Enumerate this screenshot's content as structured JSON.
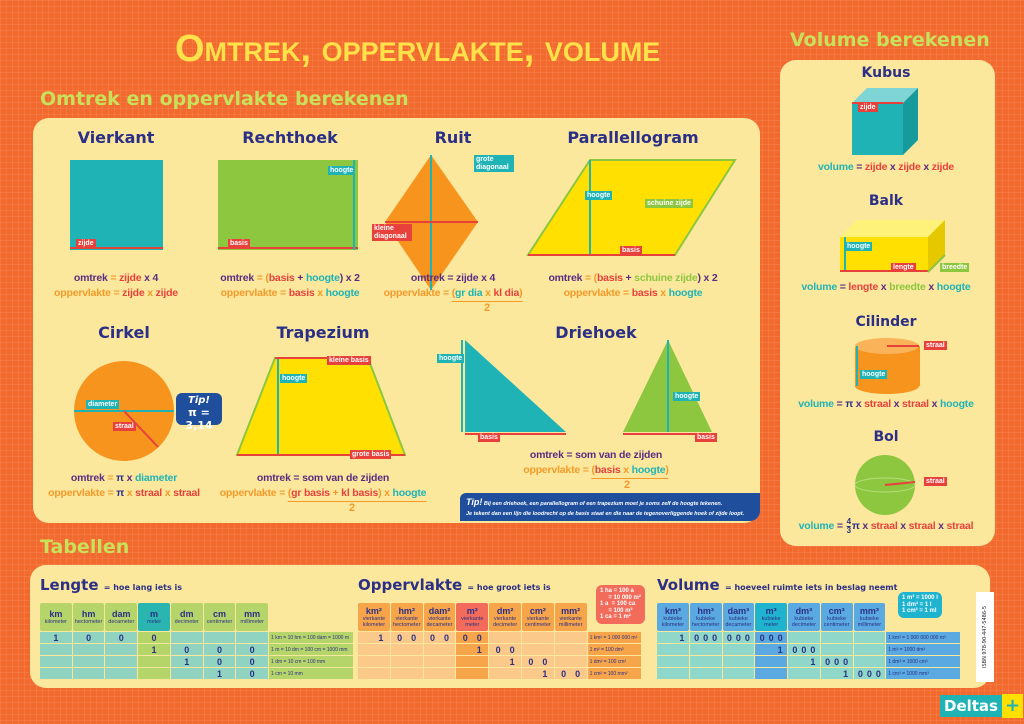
{
  "title": "Omtrek, oppervlakte, volume",
  "section_area": "Omtrek en oppervlakte berekenen",
  "section_volume": "Volume berekenen",
  "section_tables": "Tabellen",
  "colors": {
    "background": "#f26a2e",
    "panel": "#fbe89d",
    "title": "#ffe14a",
    "heading": "#c8e05a",
    "navy": "#2b2f86",
    "purple": "#5a2d82",
    "orange": "#f39a2a",
    "red": "#e8413c",
    "teal": "#1fb3b5",
    "green": "#8dc63f",
    "yellow": "#ffe000"
  },
  "shapes": {
    "vierkant": {
      "title": "Vierkant",
      "labels": [
        "zijde"
      ],
      "omtrek": [
        {
          "t": "omtrek",
          "c": "o"
        },
        {
          "t": " = ",
          "c": "p"
        },
        {
          "t": "zijde",
          "c": "z"
        },
        {
          "t": " x 4",
          "c": "o"
        }
      ],
      "opp": [
        {
          "t": "oppervlakte",
          "c": "p"
        },
        {
          "t": " = ",
          "c": "p"
        },
        {
          "t": "zijde",
          "c": "z"
        },
        {
          "t": " x ",
          "c": "p"
        },
        {
          "t": "zijde",
          "c": "z"
        }
      ]
    },
    "rechthoek": {
      "title": "Rechthoek",
      "labels": [
        "hoogte",
        "basis"
      ],
      "omtrek": [
        {
          "t": "omtrek",
          "c": "o"
        },
        {
          "t": " = (",
          "c": "p"
        },
        {
          "t": "basis",
          "c": "z"
        },
        {
          "t": " + ",
          "c": "o"
        },
        {
          "t": "hoogte",
          "c": "h"
        },
        {
          "t": ") x 2",
          "c": "o"
        }
      ],
      "opp": [
        {
          "t": "oppervlakte",
          "c": "p"
        },
        {
          "t": " = ",
          "c": "p"
        },
        {
          "t": "basis",
          "c": "z"
        },
        {
          "t": " x ",
          "c": "p"
        },
        {
          "t": "hoogte",
          "c": "h"
        }
      ]
    },
    "ruit": {
      "title": "Ruit",
      "labels": [
        "grote diagonaal",
        "kleine diagonaal"
      ],
      "omtrek": [
        {
          "t": "omtrek",
          "c": "o"
        },
        {
          "t": " = zijde x 4",
          "c": "o"
        }
      ],
      "opp": [
        {
          "t": "oppervlakte",
          "c": "p"
        },
        {
          "t": " = ",
          "c": "p"
        }
      ],
      "num": [
        {
          "t": "(",
          "c": "p"
        },
        {
          "t": "gr dia",
          "c": "h"
        },
        {
          "t": " x ",
          "c": "p"
        },
        {
          "t": "kl dia",
          "c": "z"
        },
        {
          "t": ")",
          "c": "p"
        }
      ],
      "den": "2"
    },
    "parallellogram": {
      "title": "Parallellogram",
      "labels": [
        "hoogte",
        "schuine zijde",
        "basis"
      ],
      "omtrek": [
        {
          "t": "omtrek",
          "c": "o"
        },
        {
          "t": " = (",
          "c": "p"
        },
        {
          "t": "basis",
          "c": "z"
        },
        {
          "t": " + ",
          "c": "o"
        },
        {
          "t": "schuine zijde",
          "c": "g"
        },
        {
          "t": ") x 2",
          "c": "o"
        }
      ],
      "opp": [
        {
          "t": "oppervlakte",
          "c": "p"
        },
        {
          "t": " = ",
          "c": "p"
        },
        {
          "t": "basis",
          "c": "z"
        },
        {
          "t": " x ",
          "c": "p"
        },
        {
          "t": "hoogte",
          "c": "h"
        }
      ]
    },
    "cirkel": {
      "title": "Cirkel",
      "labels": [
        "diameter",
        "straal"
      ],
      "tip_title": "Tip!",
      "tip_text": "π = 3,14",
      "omtrek": [
        {
          "t": "omtrek",
          "c": "o"
        },
        {
          "t": " = ",
          "c": "p"
        },
        {
          "t": "π",
          "c": "k"
        },
        {
          "t": " x ",
          "c": "o"
        },
        {
          "t": "diameter",
          "c": "h"
        }
      ],
      "opp": [
        {
          "t": "oppervlakte",
          "c": "p"
        },
        {
          "t": " = ",
          "c": "p"
        },
        {
          "t": "π",
          "c": "k"
        },
        {
          "t": " x ",
          "c": "p"
        },
        {
          "t": "straal",
          "c": "z"
        },
        {
          "t": " x ",
          "c": "p"
        },
        {
          "t": "straal",
          "c": "z"
        }
      ]
    },
    "trapezium": {
      "title": "Trapezium",
      "labels": [
        "kleine basis",
        "hoogte",
        "grote basis"
      ],
      "omtrek": [
        {
          "t": "omtrek",
          "c": "o"
        },
        {
          "t": " = som van de zijden",
          "c": "o"
        }
      ],
      "opp": [
        {
          "t": "oppervlakte",
          "c": "p"
        },
        {
          "t": " = ",
          "c": "p"
        }
      ],
      "num": [
        {
          "t": "(",
          "c": "p"
        },
        {
          "t": "gr basis",
          "c": "z"
        },
        {
          "t": " + ",
          "c": "p"
        },
        {
          "t": "kl basis",
          "c": "z"
        },
        {
          "t": ")",
          "c": "p"
        },
        {
          "t": " x ",
          "c": "p"
        },
        {
          "t": "hoogte",
          "c": "h"
        }
      ],
      "den": "2"
    },
    "driehoek": {
      "title": "Driehoek",
      "labels": [
        "hoogte",
        "basis",
        "hoogte",
        "basis"
      ],
      "omtrek": [
        {
          "t": "omtrek",
          "c": "o"
        },
        {
          "t": " = som van de zijden",
          "c": "o"
        }
      ],
      "opp": [
        {
          "t": "oppervlakte",
          "c": "p"
        },
        {
          "t": " = ",
          "c": "p"
        }
      ],
      "num": [
        {
          "t": "(",
          "c": "p"
        },
        {
          "t": "basis",
          "c": "z"
        },
        {
          "t": " x ",
          "c": "p"
        },
        {
          "t": "hoogte",
          "c": "h"
        },
        {
          "t": ")",
          "c": "p"
        }
      ],
      "den": "2"
    }
  },
  "tip": {
    "title": "Tip!",
    "line1": "Bij een driehoek, een parallellogram of een trapezium moet je soms zelf de hoogte tekenen.",
    "line2": "Je tekent dan een lijn die loodrecht op de basis staat en die naar de tegenoverliggende hoek of zijde loopt."
  },
  "volumes": {
    "kubus": {
      "title": "Kubus",
      "labels": [
        "zijde"
      ],
      "f": [
        {
          "t": "volume",
          "c": "h"
        },
        {
          "t": " = ",
          "c": "o"
        },
        {
          "t": "zijde",
          "c": "z"
        },
        {
          "t": " x ",
          "c": "o"
        },
        {
          "t": "zijde",
          "c": "z"
        },
        {
          "t": " x ",
          "c": "o"
        },
        {
          "t": "zijde",
          "c": "z"
        }
      ]
    },
    "balk": {
      "title": "Balk",
      "labels": [
        "hoogte",
        "lengte",
        "breedte"
      ],
      "f": [
        {
          "t": "volume",
          "c": "h"
        },
        {
          "t": " = ",
          "c": "o"
        },
        {
          "t": "lengte",
          "c": "z"
        },
        {
          "t": " x ",
          "c": "o"
        },
        {
          "t": "breedte",
          "c": "g"
        },
        {
          "t": " x ",
          "c": "o"
        },
        {
          "t": "hoogte",
          "c": "h"
        }
      ]
    },
    "cilinder": {
      "title": "Cilinder",
      "labels": [
        "straal",
        "hoogte"
      ],
      "f": [
        {
          "t": "volume",
          "c": "h"
        },
        {
          "t": " = ",
          "c": "o"
        },
        {
          "t": "π",
          "c": "k"
        },
        {
          "t": " x ",
          "c": "o"
        },
        {
          "t": "straal",
          "c": "z"
        },
        {
          "t": " x ",
          "c": "o"
        },
        {
          "t": "straal",
          "c": "z"
        },
        {
          "t": " x ",
          "c": "o"
        },
        {
          "t": "hoogte",
          "c": "h"
        }
      ]
    },
    "bol": {
      "title": "Bol",
      "labels": [
        "straal"
      ],
      "frac_num": "4",
      "frac_den": "3",
      "f": [
        {
          "t": "π",
          "c": "k"
        },
        {
          "t": " x ",
          "c": "o"
        },
        {
          "t": "straal",
          "c": "z"
        },
        {
          "t": " x ",
          "c": "o"
        },
        {
          "t": "straal",
          "c": "z"
        },
        {
          "t": " x ",
          "c": "o"
        },
        {
          "t": "straal",
          "c": "z"
        }
      ],
      "prefix": [
        {
          "t": "volume",
          "c": "h"
        },
        {
          "t": " = ",
          "c": "o"
        }
      ]
    }
  },
  "tables": [
    {
      "title": "Lengte",
      "subtitle": "= hoe lang iets is",
      "sub": 1,
      "head": "#b5d56a",
      "hl": "#2bb5b0",
      "row": "#8fd3c0",
      "rowhl": "#b5d56a",
      "note": "#b5d56a",
      "columns": [
        {
          "u": "km",
          "n": "kilometer"
        },
        {
          "u": "hm",
          "n": "hectometer"
        },
        {
          "u": "dam",
          "n": "decameter"
        },
        {
          "u": "m",
          "n": "meter"
        },
        {
          "u": "dm",
          "n": "decimeter"
        },
        {
          "u": "cm",
          "n": "centimeter"
        },
        {
          "u": "mm",
          "n": "millimeter"
        }
      ],
      "rows": [
        [
          [
            "1"
          ],
          [
            "0"
          ],
          [
            "0"
          ],
          [
            "0"
          ],
          [
            ""
          ],
          [
            ""
          ],
          [
            ""
          ]
        ],
        [
          [
            ""
          ],
          [
            ""
          ],
          [
            ""
          ],
          [
            "1"
          ],
          [
            "0"
          ],
          [
            "0"
          ],
          [
            "0"
          ]
        ],
        [
          [
            ""
          ],
          [
            ""
          ],
          [
            ""
          ],
          [
            ""
          ],
          [
            "1"
          ],
          [
            "0"
          ],
          [
            "0"
          ]
        ],
        [
          [
            ""
          ],
          [
            ""
          ],
          [
            ""
          ],
          [
            ""
          ],
          [
            ""
          ],
          [
            "1"
          ],
          [
            "0"
          ]
        ]
      ],
      "notes": [
        "1 km = 10 hm = 100 dam = 1000 m",
        "1 m = 10 dm = 100 cm = 1000 mm",
        "1 dm = 10 cm = 100 mm",
        "1 cm = 10 mm"
      ]
    },
    {
      "title": "Oppervlakte",
      "subtitle": "= hoe groot iets is",
      "sub": 2,
      "head": "#f7a54a",
      "hl": "#f26b5b",
      "row": "#fbc98a",
      "rowhl": "#f7a54a",
      "note": "#f7a54a",
      "box": "1 ha = 100 a\n     = 10 000 m²\n1 a  = 100 ca\n     = 100 m²\n1 ca = 1 m²",
      "boxcolor": "#f26b5b",
      "columns": [
        {
          "u": "km²",
          "n": "vierkante kilometer"
        },
        {
          "u": "hm²",
          "n": "vierkante hectometer"
        },
        {
          "u": "dam²",
          "n": "vierkante decameter"
        },
        {
          "u": "m²",
          "n": "vierkante meter"
        },
        {
          "u": "dm²",
          "n": "vierkante decimeter"
        },
        {
          "u": "cm²",
          "n": "vierkante centimeter"
        },
        {
          "u": "mm²",
          "n": "vierkante millimeter"
        }
      ],
      "rows": [
        [
          [
            "",
            "1"
          ],
          [
            "0",
            "0"
          ],
          [
            "0",
            "0"
          ],
          [
            "0",
            "0"
          ],
          [
            "",
            ""
          ],
          [
            "",
            ""
          ],
          [
            "",
            ""
          ]
        ],
        [
          [
            "",
            ""
          ],
          [
            "",
            ""
          ],
          [
            "",
            ""
          ],
          [
            "",
            "1"
          ],
          [
            "0",
            "0"
          ],
          [
            "",
            ""
          ],
          [
            "",
            ""
          ]
        ],
        [
          [
            "",
            ""
          ],
          [
            "",
            ""
          ],
          [
            "",
            ""
          ],
          [
            "",
            ""
          ],
          [
            "",
            "1"
          ],
          [
            "0",
            "0"
          ],
          [
            "",
            ""
          ]
        ],
        [
          [
            "",
            ""
          ],
          [
            "",
            ""
          ],
          [
            "",
            ""
          ],
          [
            "",
            ""
          ],
          [
            "",
            ""
          ],
          [
            "",
            "1"
          ],
          [
            "0",
            "0"
          ]
        ]
      ],
      "notes": [
        "1 km² = 1 000 000 m²",
        "1 m² = 100 dm²",
        "1 dm² = 100 cm²",
        "1 cm² = 100 mm²"
      ]
    },
    {
      "title": "Volume",
      "subtitle": "= hoeveel ruimte iets in beslag neemt",
      "sub": 3,
      "head": "#5aa9e0",
      "hl": "#1fb3d0",
      "row": "#8fd7c9",
      "rowhl": "#5aa9e0",
      "note": "#5aa9e0",
      "box": "1 m³ = 1000 l\n1 dm³ = 1 l\n1 cm³ = 1 ml",
      "boxcolor": "#1fb3d0",
      "columns": [
        {
          "u": "km³",
          "n": "kubieke kilometer"
        },
        {
          "u": "hm³",
          "n": "kubieke hectometer"
        },
        {
          "u": "dam³",
          "n": "kubieke decameter"
        },
        {
          "u": "m³",
          "n": "kubieke meter"
        },
        {
          "u": "dm³",
          "n": "kubieke decimeter"
        },
        {
          "u": "cm³",
          "n": "kubieke centimeter"
        },
        {
          "u": "mm³",
          "n": "kubieke millimeter"
        }
      ],
      "rows": [
        [
          [
            "",
            "",
            "1"
          ],
          [
            "0",
            "0",
            "0"
          ],
          [
            "0",
            "0",
            "0"
          ],
          [
            "0",
            "0",
            "0"
          ],
          [
            "",
            "",
            ""
          ],
          [
            "",
            "",
            ""
          ],
          [
            "",
            "",
            ""
          ]
        ],
        [
          [
            "",
            "",
            ""
          ],
          [
            "",
            "",
            ""
          ],
          [
            "",
            "",
            ""
          ],
          [
            "",
            "",
            "1"
          ],
          [
            "0",
            "0",
            "0"
          ],
          [
            "",
            "",
            ""
          ],
          [
            "",
            "",
            ""
          ]
        ],
        [
          [
            "",
            "",
            ""
          ],
          [
            "",
            "",
            ""
          ],
          [
            "",
            "",
            ""
          ],
          [
            "",
            "",
            ""
          ],
          [
            "",
            "",
            "1"
          ],
          [
            "0",
            "0",
            "0"
          ],
          [
            "",
            "",
            ""
          ]
        ],
        [
          [
            "",
            "",
            ""
          ],
          [
            "",
            "",
            ""
          ],
          [
            "",
            "",
            ""
          ],
          [
            "",
            "",
            ""
          ],
          [
            "",
            "",
            ""
          ],
          [
            "",
            "",
            "1"
          ],
          [
            "0",
            "0",
            "0"
          ]
        ]
      ],
      "notes": [
        "1 km³ = 1 000 000 000 m³",
        "1 m³ = 1000 dm³",
        "1 dm³ = 1000 cm³",
        "1 cm³ = 1000 mm³"
      ]
    }
  ],
  "isbn": "ISBN 978-90-447-5486-5",
  "logo": "Deltas"
}
